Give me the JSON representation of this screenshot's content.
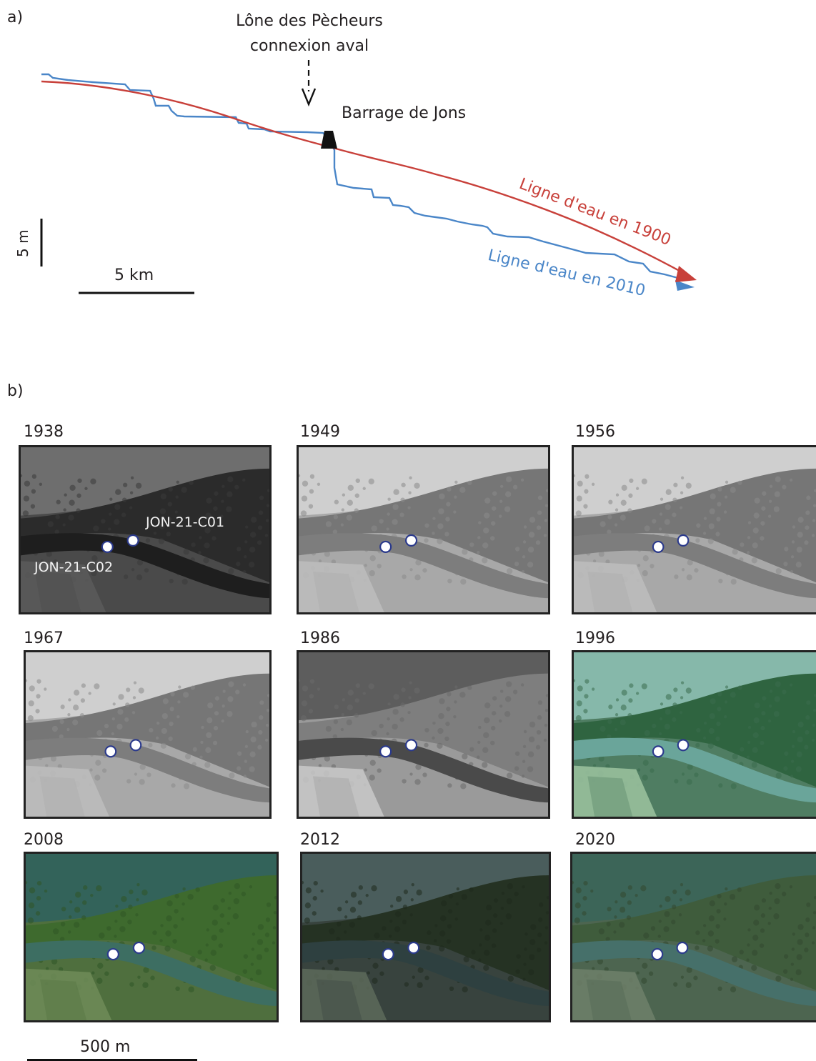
{
  "panel_a": {
    "label": "a)",
    "annotation_line1": "Lône des Pècheurs",
    "annotation_line2": "connexion aval",
    "dam_label": "Barrage de Jons",
    "series_1900_label": "Ligne d'eau en 1900",
    "series_2010_label": "Ligne d'eau en 2010",
    "scale_vertical": "5 m",
    "scale_horizontal": "5 km",
    "colors": {
      "line_1900": "#c8403a",
      "line_2010": "#4a86c8"
    }
  },
  "panel_b": {
    "label": "b)",
    "site_labels": [
      "JON-21-C01",
      "JON-21-C02"
    ],
    "scale_label": "500 m",
    "photos": [
      {
        "year": "1938",
        "style": "bw-dark"
      },
      {
        "year": "1949",
        "style": "bw-light"
      },
      {
        "year": "1956",
        "style": "bw-light"
      },
      {
        "year": "1967",
        "style": "bw-light"
      },
      {
        "year": "1986",
        "style": "bw-mid"
      },
      {
        "year": "1996",
        "style": "color-teal"
      },
      {
        "year": "2008",
        "style": "color-green"
      },
      {
        "year": "2012",
        "style": "color-dark"
      },
      {
        "year": "2020",
        "style": "color-muted"
      }
    ]
  }
}
